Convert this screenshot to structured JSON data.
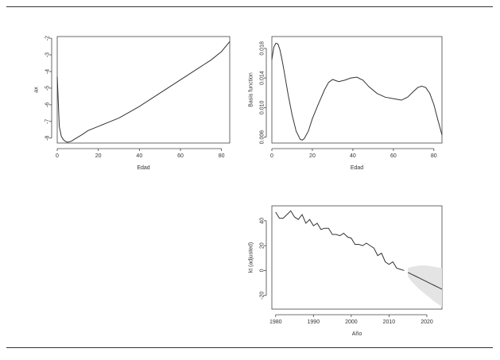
{
  "chart_data": [
    {
      "type": "line",
      "title": "",
      "xlabel": "Edad",
      "ylabel": "ax",
      "xlim": [
        0,
        84
      ],
      "ylim": [
        -8.3,
        -1.9
      ],
      "xticks": [
        0,
        20,
        40,
        60,
        80
      ],
      "yticks": [
        -8,
        -7,
        -6,
        -5,
        -4,
        -3,
        -2
      ],
      "x": [
        0,
        1,
        2,
        3,
        4,
        5,
        6,
        7,
        8,
        10,
        12,
        15,
        20,
        25,
        30,
        35,
        40,
        45,
        50,
        55,
        60,
        65,
        70,
        75,
        80,
        84
      ],
      "values": [
        -4.3,
        -7.3,
        -7.9,
        -8.1,
        -8.2,
        -8.25,
        -8.22,
        -8.18,
        -8.1,
        -7.95,
        -7.8,
        -7.55,
        -7.3,
        -7.05,
        -6.8,
        -6.45,
        -6.1,
        -5.7,
        -5.3,
        -4.9,
        -4.5,
        -4.1,
        -3.7,
        -3.3,
        -2.8,
        -2.2
      ]
    },
    {
      "type": "line",
      "title": "",
      "xlabel": "Edad",
      "ylabel": "Basis function",
      "xlim": [
        0,
        84
      ],
      "ylim": [
        0.0052,
        0.0196
      ],
      "xticks": [
        0,
        20,
        40,
        60,
        80
      ],
      "yticks": [
        0.006,
        0.01,
        0.014,
        0.018
      ],
      "ytick_labels": [
        "0.006",
        "0.010",
        "0.014",
        "0.018"
      ],
      "x": [
        0,
        1,
        2,
        3,
        4,
        5,
        6,
        8,
        10,
        12,
        14,
        15,
        16,
        18,
        20,
        23,
        26,
        28,
        30,
        33,
        36,
        39,
        42,
        45,
        48,
        52,
        56,
        60,
        64,
        67,
        70,
        72,
        74,
        76,
        78,
        80,
        82,
        84
      ],
      "values": [
        0.0165,
        0.0182,
        0.0187,
        0.0186,
        0.0178,
        0.0165,
        0.015,
        0.0118,
        0.009,
        0.0068,
        0.0057,
        0.0056,
        0.0058,
        0.0068,
        0.0085,
        0.0105,
        0.0124,
        0.0134,
        0.0138,
        0.0135,
        0.0137,
        0.014,
        0.0141,
        0.0137,
        0.0128,
        0.0119,
        0.0114,
        0.0112,
        0.011,
        0.0114,
        0.0122,
        0.0127,
        0.0129,
        0.0127,
        0.0119,
        0.0104,
        0.0083,
        0.0063
      ]
    },
    {
      "type": "line",
      "title": "",
      "xlabel": "Año",
      "ylabel": "kt (adjusted)",
      "xlim": [
        1979,
        2024
      ],
      "ylim": [
        -31,
        52
      ],
      "xticks": [
        1980,
        1990,
        2000,
        2010,
        2020
      ],
      "yticks": [
        -20,
        0,
        20,
        40
      ],
      "series": [
        {
          "x": [
            1980,
            1981,
            1982,
            1983,
            1984,
            1985,
            1986,
            1987,
            1988,
            1989,
            1990,
            1991,
            1992,
            1993,
            1994,
            1995,
            1996,
            1997,
            1998,
            1999,
            2000,
            2001,
            2002,
            2003,
            2004,
            2005,
            2006,
            2007,
            2008,
            2009,
            2010,
            2011,
            2012,
            2013,
            2014
          ],
          "values": [
            47,
            42,
            42,
            45,
            48,
            43,
            41,
            45,
            38,
            41,
            36,
            38,
            33,
            34,
            34,
            29,
            29,
            28,
            30,
            27,
            26,
            21,
            21,
            20,
            22,
            20,
            18,
            12,
            14,
            7,
            5,
            7,
            2,
            1,
            0
          ]
        },
        {
          "x": [
            2015,
            2016,
            2017,
            2018,
            2019,
            2020,
            2021,
            2022,
            2023,
            2024
          ],
          "values": [
            -1.5,
            -3,
            -4.5,
            -6,
            -7.5,
            -9,
            -10.5,
            -12,
            -13.5,
            -15
          ],
          "lower": [
            -5,
            -9,
            -12,
            -15,
            -17.5,
            -20,
            -22.5,
            -25,
            -27,
            -29
          ],
          "upper": [
            2,
            3,
            3.5,
            4,
            4,
            4,
            3.5,
            3,
            2.5,
            2
          ]
        }
      ]
    }
  ]
}
